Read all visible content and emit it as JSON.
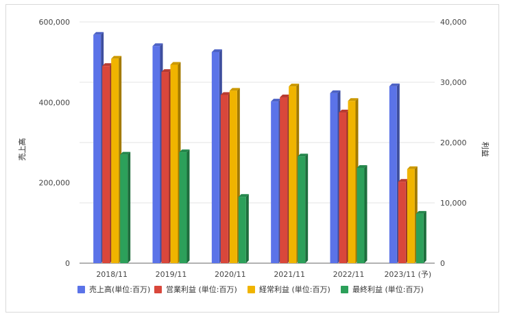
{
  "chart_data": {
    "type": "bar",
    "title": "",
    "categories": [
      "2018/11",
      "2019/11",
      "2020/11",
      "2021/11",
      "2022/11",
      "2023/11 (予)"
    ],
    "y_left": {
      "label": "売上高",
      "ylim": [
        0,
        600000
      ],
      "ticks": [
        "0",
        "200,000",
        "400,000",
        "600,000"
      ],
      "tick_values": [
        0,
        200000,
        400000,
        600000
      ]
    },
    "y_right": {
      "label": "利益",
      "ylim": [
        0,
        40000
      ],
      "ticks": [
        "0",
        "10,000",
        "20,000",
        "30,000",
        "40,000"
      ],
      "tick_values": [
        0,
        10000,
        20000,
        30000,
        40000
      ]
    },
    "series": [
      {
        "name": "売上高(単位:百万)",
        "axis": "left",
        "color": "#5b73e8",
        "values": [
          568000,
          540000,
          525000,
          402000,
          423000,
          440000
        ]
      },
      {
        "name": "営業利益 (単位:百万)",
        "axis": "right",
        "color": "#d9473b",
        "values": [
          32700,
          31700,
          27900,
          27500,
          25000,
          13500
        ]
      },
      {
        "name": "経常利益 (単位:百万)",
        "axis": "right",
        "color": "#f0b400",
        "values": [
          33900,
          32900,
          28600,
          29300,
          26900,
          15600
        ]
      },
      {
        "name": "最終利益 (単位:百万)",
        "axis": "right",
        "color": "#2ca05a",
        "values": [
          18000,
          18400,
          11000,
          17700,
          15800,
          8200
        ]
      }
    ],
    "grid": true,
    "style": "3d-bar",
    "legend_position": "bottom"
  }
}
